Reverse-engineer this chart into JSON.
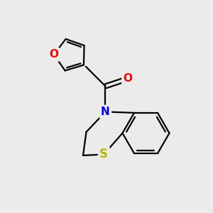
{
  "background_color": "#ebebeb",
  "bond_color": "#000000",
  "bond_width": 1.6,
  "atom_colors": {
    "O_furan": "#ff0000",
    "O_carbonyl": "#ff0000",
    "N": "#0000ee",
    "S": "#b8b800"
  },
  "font_size_atoms": 11,
  "fig_size": [
    3.0,
    3.0
  ],
  "dpi": 100,
  "xlim": [
    0,
    10
  ],
  "ylim": [
    0,
    10
  ]
}
